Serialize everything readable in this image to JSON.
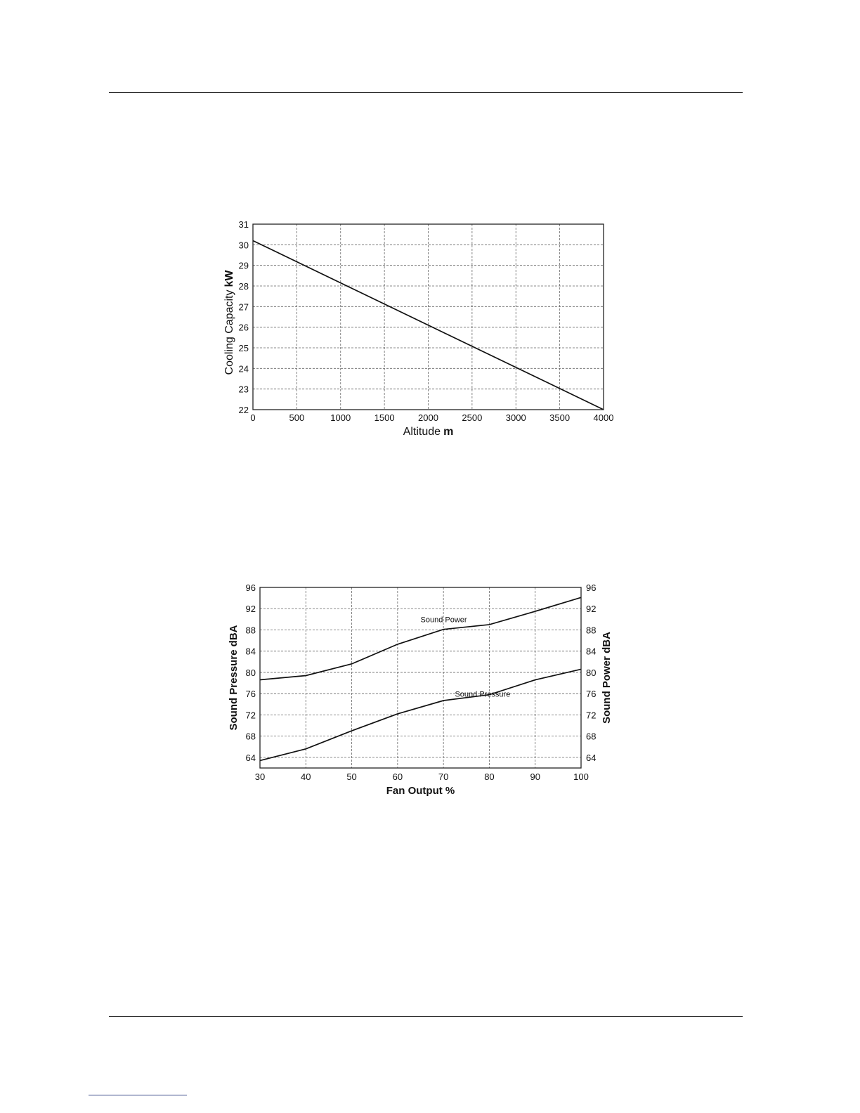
{
  "chart_data": [
    {
      "type": "line",
      "title": "",
      "xlabel": "Altitude",
      "xlabel_unit": "m",
      "ylabel": "Cooling Capacity",
      "ylabel_unit": "kW",
      "xlim": [
        0,
        4000
      ],
      "ylim": [
        22,
        31
      ],
      "x_ticks": [
        "0",
        "500",
        "1000",
        "1500",
        "2000",
        "2500",
        "3000",
        "3500",
        "4000"
      ],
      "y_ticks": [
        "22",
        "23",
        "24",
        "25",
        "26",
        "27",
        "28",
        "29",
        "30",
        "31"
      ],
      "grid": true,
      "series": [
        {
          "x": [
            0,
            4000
          ],
          "y": [
            30.2,
            22.0
          ]
        }
      ]
    },
    {
      "type": "line",
      "title": "",
      "xlabel": "Fan Output %",
      "ylabel_left": "Sound Pressure dBA",
      "ylabel_right": "Sound Power dBA",
      "xlim": [
        30,
        100
      ],
      "ylim": [
        62,
        96
      ],
      "x_ticks": [
        "30",
        "40",
        "50",
        "60",
        "70",
        "80",
        "90",
        "100"
      ],
      "y_ticks": [
        "64",
        "68",
        "72",
        "76",
        "80",
        "84",
        "88",
        "92",
        "96"
      ],
      "grid": true,
      "series": [
        {
          "name": "Sound Power",
          "x": [
            30,
            40,
            50,
            60,
            70,
            80,
            90,
            100
          ],
          "y": [
            78.6,
            79.4,
            81.6,
            85.3,
            88.1,
            89.0,
            91.5,
            94.1
          ]
        },
        {
          "name": "Sound Pressure",
          "x": [
            30,
            40,
            50,
            60,
            70,
            80,
            90,
            100
          ],
          "y": [
            63.4,
            65.6,
            69.0,
            72.2,
            74.7,
            75.8,
            78.6,
            80.6
          ]
        }
      ]
    }
  ]
}
